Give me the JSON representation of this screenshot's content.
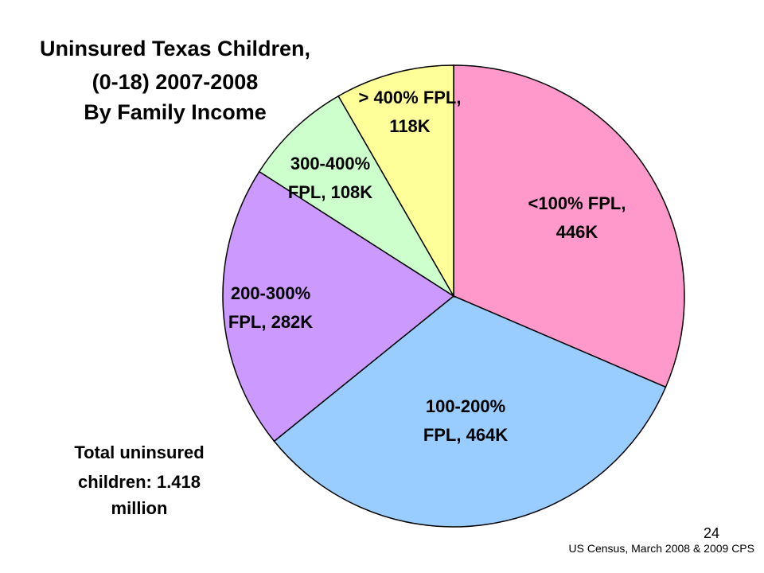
{
  "slide": {
    "title_lines": [
      "Uninsured Texas Children,",
      "(0-18) 2007-2008",
      "By Family Income"
    ],
    "total_lines": [
      "Total uninsured",
      "children: 1.418",
      "million"
    ],
    "page_number": "24",
    "source": "US Census, March 2008 & 2009 CPS"
  },
  "chart_data": {
    "type": "pie",
    "units": "thousands of children",
    "start": "12 o'clock",
    "direction": "clockwise",
    "slices": [
      {
        "category": "<100% FPL",
        "value": 446,
        "label_lines": [
          "<100% FPL,",
          "446K"
        ],
        "color": "#FF99CC"
      },
      {
        "category": "100-200% FPL",
        "value": 464,
        "label_lines": [
          "100-200%",
          "FPL, 464K"
        ],
        "color": "#99CCFF"
      },
      {
        "category": "200-300% FPL",
        "value": 282,
        "label_lines": [
          "200-300%",
          "FPL, 282K"
        ],
        "color": "#CC99FF"
      },
      {
        "category": "300-400% FPL",
        "value": 108,
        "label_lines": [
          "300-400%",
          "FPL, 108K"
        ],
        "color": "#CCFFCC"
      },
      {
        "category": "> 400% FPL",
        "value": 118,
        "label_lines": [
          "> 400% FPL,",
          "118K"
        ],
        "color": "#FFFF99"
      }
    ]
  }
}
